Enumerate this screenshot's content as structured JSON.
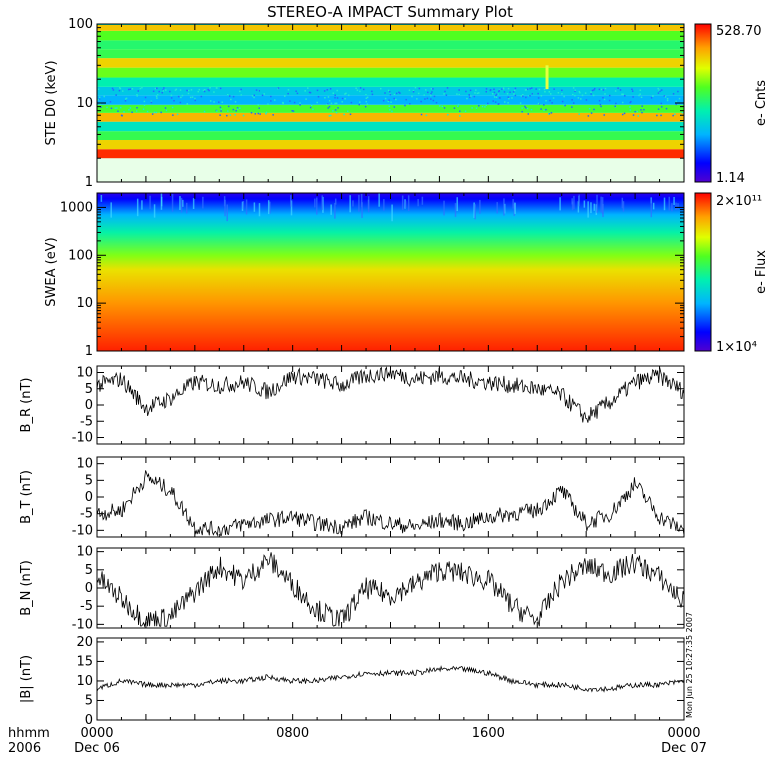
{
  "title": "STEREO-A IMPACT Summary Plot",
  "footer": {
    "fmt_label": "hhmm",
    "year_label": "2006"
  },
  "x_axis": {
    "ticks": [
      {
        "hour": 0,
        "time": "0000",
        "date": "Dec 06"
      },
      {
        "hour": 8,
        "time": "0800",
        "date": ""
      },
      {
        "hour": 16,
        "time": "1600",
        "date": ""
      },
      {
        "hour": 24,
        "time": "0000",
        "date": "Dec 07"
      }
    ]
  },
  "timestamp": "Mon Jun 25 10:27:35 2007",
  "chart_data": [
    {
      "type": "heatmap",
      "ylabel": "STE D0 (keV)",
      "yscale": "log",
      "ylim": [
        1,
        100
      ],
      "yticks": [
        "1",
        "10",
        "100"
      ],
      "colorbar": {
        "label": "e- Cnts",
        "max": "528.70",
        "min": "1.14"
      },
      "energy_bands_keV": [
        2.0,
        2.6,
        3.4,
        4.4,
        5.8,
        7.5,
        9.5,
        12.5,
        16,
        21,
        28,
        37,
        48,
        62,
        82,
        100
      ],
      "band_levels": [
        0.96,
        0.78,
        0.55,
        0.42,
        0.82,
        0.58,
        0.3,
        0.35,
        0.45,
        0.62,
        0.78,
        0.55,
        0.52,
        0.6,
        0.8,
        0.4
      ],
      "feature": {
        "hour": 18.4,
        "energy_range_keV": [
          15,
          30
        ]
      }
    },
    {
      "type": "heatmap",
      "ylabel": "SWEA (eV)",
      "yscale": "log",
      "ylim": [
        1,
        2000
      ],
      "yticks": [
        "1",
        "10",
        "100",
        "1000"
      ],
      "colorbar": {
        "label": "e- Flux",
        "max": "2×10¹¹",
        "min": "1×10⁴"
      },
      "energy_levels": [
        {
          "eV": 1,
          "level": 0.97
        },
        {
          "eV": 10,
          "level": 0.86
        },
        {
          "eV": 50,
          "level": 0.76
        },
        {
          "eV": 100,
          "level": 0.64
        },
        {
          "eV": 300,
          "level": 0.46
        },
        {
          "eV": 700,
          "level": 0.3
        },
        {
          "eV": 1500,
          "level": 0.12
        },
        {
          "eV": 2000,
          "level": 0.06
        }
      ]
    },
    {
      "type": "line",
      "ylabel": "B_R (nT)",
      "ylim": [
        -12,
        12
      ],
      "yticks": [
        "10",
        "5",
        "0",
        "-5",
        "-10"
      ],
      "x": [
        0,
        1,
        2,
        3,
        4,
        5,
        6,
        7,
        8,
        9,
        10,
        11,
        12,
        13,
        14,
        15,
        16,
        17,
        18,
        19,
        20,
        21,
        22,
        23,
        24
      ],
      "values": [
        6,
        8,
        -1,
        2,
        7,
        6,
        7,
        4,
        9,
        8,
        6,
        9,
        10,
        8,
        9,
        8,
        7,
        6,
        5,
        3,
        -4,
        1,
        7,
        9,
        4
      ]
    },
    {
      "type": "line",
      "ylabel": "B_T (nT)",
      "ylim": [
        -12,
        12
      ],
      "yticks": [
        "10",
        "5",
        "0",
        "-5",
        "-10"
      ],
      "x": [
        0,
        1,
        2,
        3,
        4,
        5,
        6,
        7,
        8,
        9,
        10,
        11,
        12,
        13,
        14,
        15,
        16,
        17,
        18,
        19,
        20,
        21,
        22,
        23,
        24
      ],
      "values": [
        -5,
        -4,
        6,
        2,
        -9,
        -10,
        -8,
        -7,
        -6,
        -8,
        -9,
        -6,
        -8,
        -9,
        -7,
        -8,
        -6,
        -5,
        -4,
        2,
        -8,
        -5,
        4,
        -6,
        -10
      ]
    },
    {
      "type": "line",
      "ylabel": "B_N (nT)",
      "ylim": [
        -11,
        11
      ],
      "yticks": [
        "10",
        "5",
        "0",
        "-5",
        "-10"
      ],
      "x": [
        0,
        1,
        2,
        3,
        4,
        5,
        6,
        7,
        8,
        9,
        10,
        11,
        12,
        13,
        14,
        15,
        16,
        17,
        18,
        19,
        20,
        21,
        22,
        23,
        24
      ],
      "values": [
        3,
        -3,
        -9,
        -8,
        -1,
        6,
        2,
        8,
        1,
        -6,
        -9,
        0,
        -2,
        1,
        5,
        4,
        2,
        -5,
        -9,
        2,
        6,
        4,
        7,
        3,
        -4
      ]
    },
    {
      "type": "line",
      "ylabel": "|B| (nT)",
      "ylim": [
        0,
        21
      ],
      "yticks": [
        "20",
        "15",
        "10",
        "5",
        "0"
      ],
      "x": [
        0,
        1,
        2,
        3,
        4,
        5,
        6,
        7,
        8,
        9,
        10,
        11,
        12,
        13,
        14,
        15,
        16,
        17,
        18,
        19,
        20,
        21,
        22,
        23,
        24
      ],
      "values": [
        8,
        10,
        9,
        9,
        9,
        10,
        10,
        11,
        10,
        10,
        11,
        12,
        12,
        12,
        13,
        13,
        12,
        10,
        9,
        9,
        8,
        8,
        9,
        9,
        10
      ]
    }
  ]
}
